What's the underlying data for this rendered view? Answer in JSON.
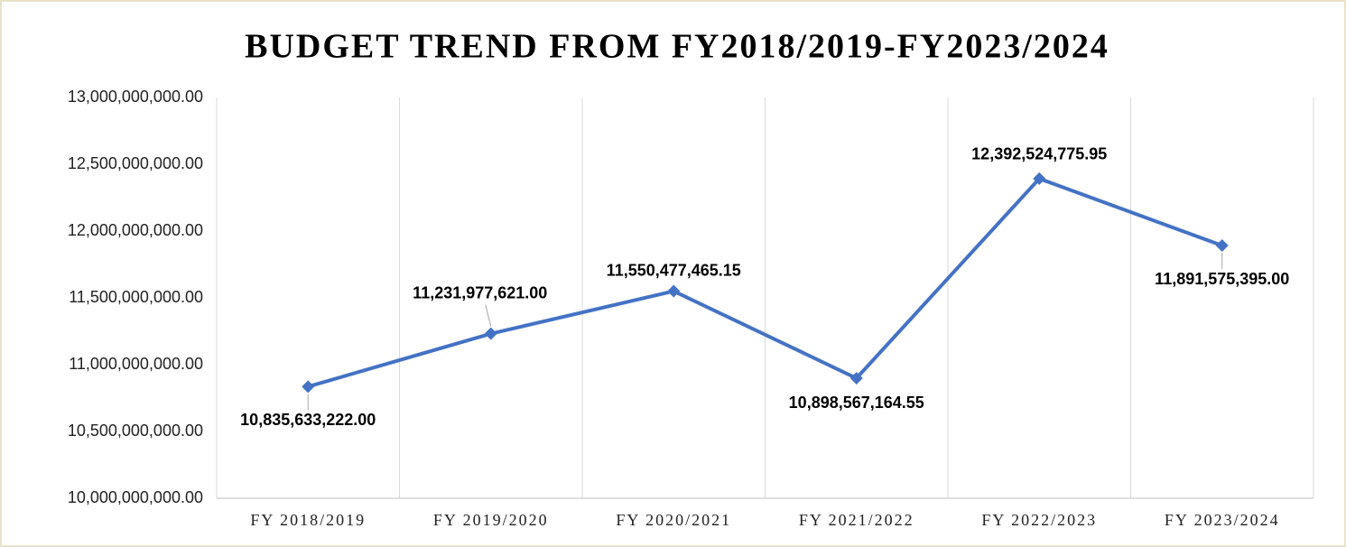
{
  "chart_data": {
    "type": "line",
    "title": "BUDGET TREND FROM FY2018/2019-FY2023/2024",
    "categories": [
      "FY 2018/2019",
      "FY 2019/2020",
      "FY 2020/2021",
      "FY 2021/2022",
      "FY 2022/2023",
      "FY 2023/2024"
    ],
    "series": [
      {
        "name": "Budget",
        "color": "#4472c4",
        "values": [
          10835633222.0,
          11231977621.0,
          11550477465.15,
          10898567164.55,
          12392524775.95,
          11891575395.0
        ]
      }
    ],
    "value_labels": [
      "10,835,633,222.00",
      "11,231,977,621.00",
      "11,550,477,465.15",
      "10,898,567,164.55",
      "12,392,524,775.95",
      "11,891,575,395.00"
    ],
    "ylim": [
      10000000000,
      13000000000
    ],
    "yticks": [
      {
        "value": 10000000000,
        "label": "10,000,000,000.00"
      },
      {
        "value": 10500000000,
        "label": "10,500,000,000.00"
      },
      {
        "value": 11000000000,
        "label": "11,000,000,000.00"
      },
      {
        "value": 11500000000,
        "label": "11,500,000,000.00"
      },
      {
        "value": 12000000000,
        "label": "12,000,000,000.00"
      },
      {
        "value": 12500000000,
        "label": "12,500,000,000.00"
      },
      {
        "value": 13000000000,
        "label": "13,000,000,000.00"
      }
    ],
    "grid": "vertical"
  }
}
